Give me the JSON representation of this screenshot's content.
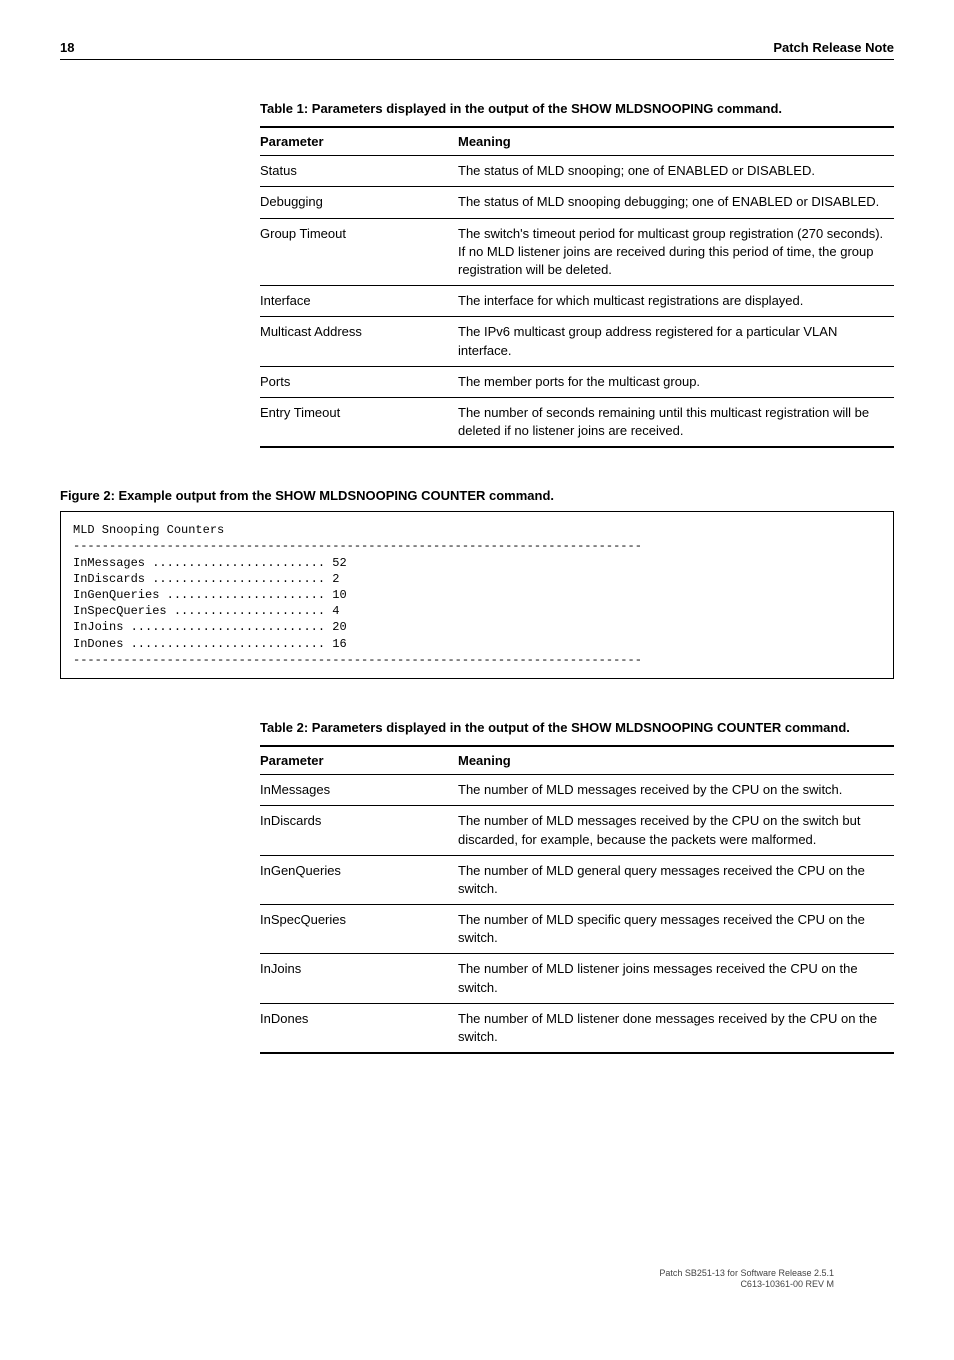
{
  "header": {
    "page_num": "18",
    "doc_title": "Patch Release Note"
  },
  "table1": {
    "caption": "Table 1: Parameters displayed in the output of the SHOW MLDSNOOPING command.",
    "col_param": "Parameter",
    "col_meaning": "Meaning",
    "rows": [
      {
        "param": "Status",
        "meaning": "The status of MLD snooping; one of ENABLED or DISABLED."
      },
      {
        "param": "Debugging",
        "meaning": "The status of MLD snooping debugging; one of ENABLED or DISABLED."
      },
      {
        "param": "Group Timeout",
        "meaning": "The switch's timeout period for multicast group registration (270 seconds). If no MLD listener joins are received during this period of time, the group registration will be deleted."
      },
      {
        "param": "Interface",
        "meaning": "The interface for which multicast registrations are displayed."
      },
      {
        "param": "Multicast Address",
        "meaning": "The IPv6 multicast group address registered for a particular VLAN interface."
      },
      {
        "param": "Ports",
        "meaning": "The member ports for the multicast group."
      },
      {
        "param": "Entry Timeout",
        "meaning": "The number of seconds remaining until this multicast registration will be deleted if no listener joins are received."
      }
    ]
  },
  "figure2": {
    "caption": "Figure 2: Example output from the SHOW MLDSNOOPING COUNTER command.",
    "text": "MLD Snooping Counters\n-------------------------------------------------------------------------------\nInMessages ........................ 52\nInDiscards ........................ 2\nInGenQueries ...................... 10\nInSpecQueries ..................... 4\nInJoins ........................... 20\nInDones ........................... 16\n-------------------------------------------------------------------------------"
  },
  "table2": {
    "caption": "Table 2: Parameters displayed in the output of the SHOW MLDSNOOPING COUNTER command.",
    "col_param": "Parameter",
    "col_meaning": "Meaning",
    "rows": [
      {
        "param": "InMessages",
        "meaning": "The number of MLD messages received by the CPU on the switch."
      },
      {
        "param": "InDiscards",
        "meaning": "The number of MLD messages received by the CPU on the switch but discarded, for example, because the packets were malformed."
      },
      {
        "param": "InGenQueries",
        "meaning": "The number of MLD general query messages received the CPU on the switch."
      },
      {
        "param": "InSpecQueries",
        "meaning": "The number of MLD specific query messages received the CPU on the switch."
      },
      {
        "param": "InJoins",
        "meaning": "The number of MLD listener joins messages received the CPU on the switch."
      },
      {
        "param": "InDones",
        "meaning": "The number of MLD listener done messages received by the CPU on the switch."
      }
    ]
  },
  "footer": {
    "line1": "Patch SB251-13 for Software Release 2.5.1",
    "line2": "C613-10361-00 REV M"
  }
}
